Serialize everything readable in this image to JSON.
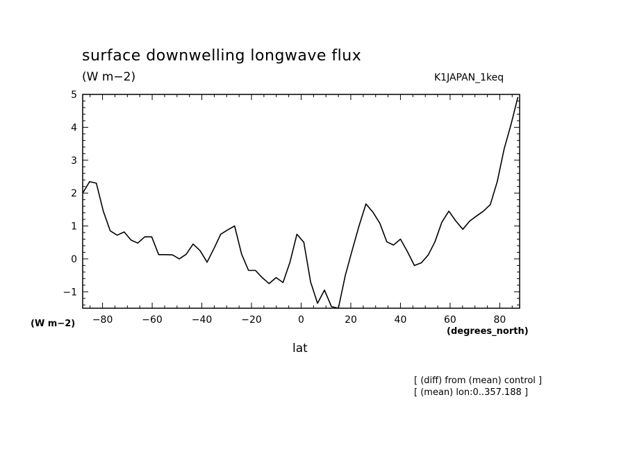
{
  "chart_data": {
    "type": "line",
    "title": "surface downwelling longwave flux",
    "subtitle": "(W m−2)",
    "experiment_label": "K1JAPAN_1keq",
    "ylabel": "(W m−2)",
    "xlabel": "lat",
    "x_units": "(degrees_north)",
    "xlim": [
      -88,
      88
    ],
    "ylim": [
      -1.5,
      5
    ],
    "x_ticks": [
      -80,
      -60,
      -40,
      -20,
      0,
      20,
      40,
      60,
      80
    ],
    "x_tick_labels": [
      "−80",
      "−60",
      "−40",
      "−20",
      "0",
      "20",
      "40",
      "60",
      "80"
    ],
    "y_ticks": [
      -1,
      0,
      1,
      2,
      3,
      4,
      5
    ],
    "y_tick_labels": [
      "−1",
      "0",
      "1",
      "2",
      "3",
      "4",
      "5"
    ],
    "grid": false,
    "color": "#000000",
    "series": [
      {
        "x": [
          -88,
          -85.2,
          -82.5,
          -79.7,
          -76.9,
          -74.1,
          -71.3,
          -68.5,
          -65.8,
          -63.0,
          -60.2,
          -57.4,
          -54.6,
          -51.8,
          -49.1,
          -46.3,
          -43.5,
          -40.7,
          -37.9,
          -35.1,
          -32.4,
          -29.6,
          -26.8,
          -24.0,
          -21.2,
          -18.4,
          -15.7,
          -12.9,
          -10.1,
          -7.3,
          -4.5,
          -1.7,
          1.1,
          3.8,
          6.6,
          9.4,
          12.2,
          15.0,
          17.8,
          20.5,
          23.3,
          26.1,
          28.9,
          31.7,
          34.5,
          37.2,
          40.0,
          42.8,
          45.6,
          48.4,
          51.2,
          53.9,
          56.7,
          59.5,
          62.3,
          65.1,
          67.9,
          70.6,
          73.4,
          76.2,
          79.0,
          81.8,
          84.6,
          87.3
        ],
        "y": [
          2.0,
          2.35,
          2.3,
          1.45,
          0.85,
          0.72,
          0.82,
          0.57,
          0.48,
          0.67,
          0.67,
          0.13,
          0.13,
          0.12,
          0.0,
          0.14,
          0.45,
          0.25,
          -0.1,
          0.32,
          0.75,
          0.88,
          1.0,
          0.15,
          -0.35,
          -0.35,
          -0.57,
          -0.75,
          -0.57,
          -0.72,
          -0.1,
          0.75,
          0.5,
          -0.7,
          -1.35,
          -0.95,
          -1.45,
          -1.5,
          -0.5,
          0.25,
          1.0,
          1.67,
          1.42,
          1.08,
          0.52,
          0.42,
          0.6,
          0.22,
          -0.2,
          -0.12,
          0.12,
          0.52,
          1.12,
          1.45,
          1.15,
          0.9,
          1.15,
          1.3,
          1.45,
          1.65,
          2.35,
          3.35,
          4.1,
          4.92
        ]
      }
    ]
  },
  "notes": [
    "[ (diff) from (mean) control ]",
    "[ (mean) lon:0..357.188 ]"
  ]
}
